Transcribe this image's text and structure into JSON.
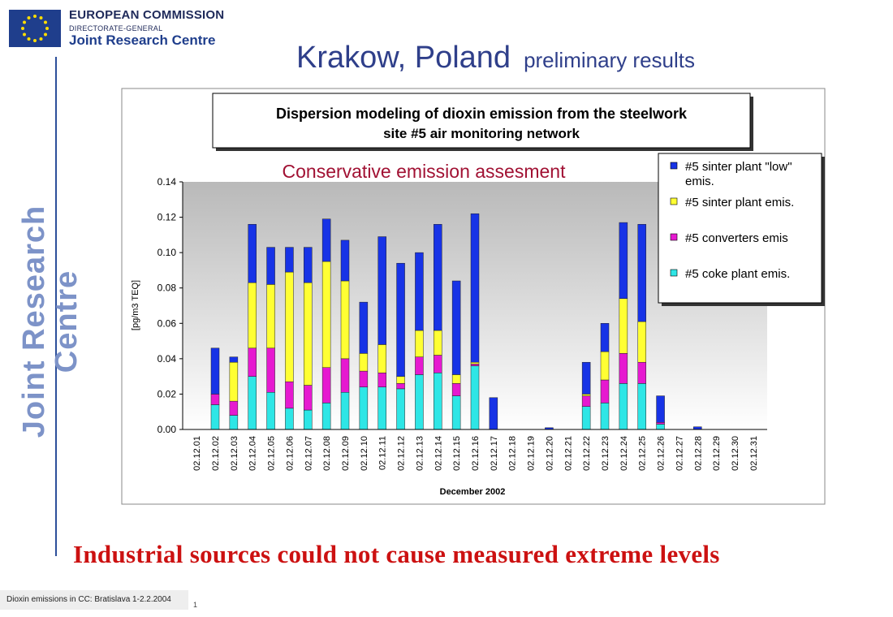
{
  "header": {
    "org_line1": "EUROPEAN COMMISSION",
    "org_line2": "DIRECTORATE-GENERAL",
    "org_line3": "Joint Research Centre",
    "vertical_brand": "Joint Research Centre"
  },
  "slide": {
    "title": "Krakow, Poland",
    "subtitle": "preliminary results",
    "conclusion": "Industrial sources could not cause measured extreme levels",
    "footer": "Dioxin emissions in CC: Bratislava 1-2.2.2004",
    "page_number": "1"
  },
  "chart_data": {
    "type": "bar",
    "stacked": true,
    "title_line1": "Dispersion modeling of dioxin emission from the steelwork",
    "title_line2": "site #5 air monitoring network",
    "annotation": "Conservative emission assesment",
    "xlabel": "December 2002",
    "ylabel": "[pg/m3 TEQ]",
    "ylim": [
      0,
      0.14
    ],
    "yticks": [
      "0.00",
      "0.02",
      "0.04",
      "0.06",
      "0.08",
      "0.10",
      "0.12",
      "0.14"
    ],
    "grid": false,
    "legend_position": "top-right",
    "categories": [
      "02.12.01",
      "02.12.02",
      "02.12.03",
      "02.12.04",
      "02.12.05",
      "02.12.06",
      "02.12.07",
      "02.12.08",
      "02.12.09",
      "02.12.10",
      "02.12.11",
      "02.12.12",
      "02.12.13",
      "02.12.14",
      "02.12.15",
      "02.12.16",
      "02.12.17",
      "02.12.18",
      "02.12.19",
      "02.12.20",
      "02.12.21",
      "02.12.22",
      "02.12.23",
      "02.12.24",
      "02.12.25",
      "02.12.26",
      "02.12.27",
      "02.12.28",
      "02.12.29",
      "02.12.30",
      "02.12.31"
    ],
    "series": [
      {
        "name": "#5 coke plant emis.",
        "color": "#2ee6e6",
        "values": [
          0,
          0.014,
          0.008,
          0.03,
          0.021,
          0.012,
          0.011,
          0.015,
          0.021,
          0.024,
          0.024,
          0.023,
          0.031,
          0.032,
          0.019,
          0.036,
          0,
          0,
          0,
          0,
          0,
          0.013,
          0.015,
          0.026,
          0.026,
          0.003,
          0,
          0,
          0,
          0,
          0
        ]
      },
      {
        "name": "#5 converters emis",
        "color": "#e619d0",
        "values": [
          0,
          0.006,
          0.008,
          0.016,
          0.025,
          0.015,
          0.014,
          0.02,
          0.019,
          0.009,
          0.008,
          0.003,
          0.01,
          0.01,
          0.007,
          0.001,
          0,
          0,
          0,
          0,
          0,
          0.006,
          0.013,
          0.017,
          0.012,
          0.001,
          0,
          0,
          0,
          0,
          0
        ]
      },
      {
        "name": "#5 sinter plant emis.",
        "color": "#ffff33",
        "values": [
          0,
          0,
          0.022,
          0.037,
          0.036,
          0.062,
          0.058,
          0.06,
          0.044,
          0.01,
          0.016,
          0.004,
          0.015,
          0.014,
          0.005,
          0.001,
          0,
          0,
          0,
          0,
          0,
          0.001,
          0.016,
          0.031,
          0.023,
          0,
          0,
          0,
          0,
          0,
          0
        ]
      },
      {
        "name": "#5 sinter plant \"low\" emis.",
        "color": "#1733e6",
        "values": [
          0,
          0.026,
          0.003,
          0.033,
          0.021,
          0.014,
          0.02,
          0.024,
          0.023,
          0.029,
          0.061,
          0.064,
          0.044,
          0.06,
          0.053,
          0.084,
          0.018,
          0,
          0,
          0.001,
          0,
          0.018,
          0.016,
          0.043,
          0.055,
          0.015,
          0,
          0.0015,
          0,
          0,
          0
        ]
      }
    ]
  }
}
